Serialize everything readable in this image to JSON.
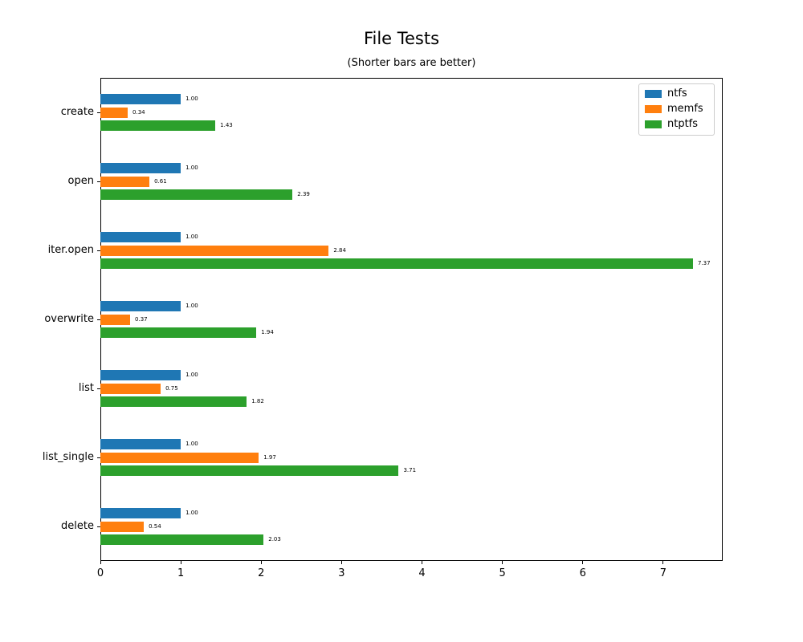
{
  "chart_data": {
    "type": "bar",
    "orientation": "horizontal",
    "title": "File Tests",
    "subtitle": "(Shorter bars are better)",
    "categories": [
      "create",
      "open",
      "iter.open",
      "overwrite",
      "list",
      "list_single",
      "delete"
    ],
    "series": [
      {
        "name": "ntfs",
        "color": "#1f77b4",
        "values": [
          1.0,
          1.0,
          1.0,
          1.0,
          1.0,
          1.0,
          1.0
        ]
      },
      {
        "name": "memfs",
        "color": "#ff7f0e",
        "values": [
          0.34,
          0.61,
          2.84,
          0.37,
          0.75,
          1.97,
          0.54
        ]
      },
      {
        "name": "ntptfs",
        "color": "#2ca02c",
        "values": [
          1.43,
          2.39,
          7.37,
          1.94,
          1.82,
          3.71,
          2.03
        ]
      }
    ],
    "value_label_decimals": 2,
    "xlabel": "",
    "ylabel": "",
    "xticks": [
      0,
      1,
      2,
      3,
      4,
      5,
      6,
      7
    ],
    "xlim": [
      0,
      7.74
    ],
    "grid": false,
    "legend": {
      "position": "upper-right",
      "entries": [
        "ntfs",
        "memfs",
        "ntptfs"
      ]
    }
  }
}
